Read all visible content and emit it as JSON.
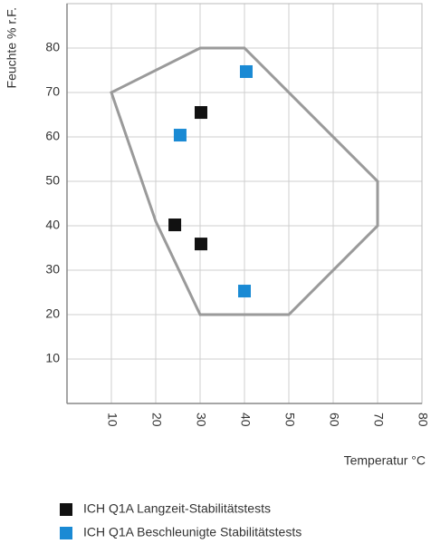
{
  "chart_data": {
    "type": "scatter",
    "x_label": "Temperatur °C",
    "y_label": "Feuchte % r.F.",
    "xlim": [
      0,
      80
    ],
    "ylim": [
      0,
      90
    ],
    "xticks": [
      10,
      20,
      30,
      40,
      50,
      60,
      70,
      80
    ],
    "yticks": [
      10,
      20,
      30,
      40,
      50,
      60,
      70,
      80
    ],
    "grid": true,
    "region": {
      "color": "#9a9a9a",
      "x": [
        10,
        30,
        40,
        70,
        70,
        50,
        30,
        20
      ],
      "y": [
        70,
        80,
        80,
        50,
        40,
        20,
        20,
        41
      ]
    },
    "series": [
      {
        "name": "ICH Q1A Langzeit-Stabilitätstests",
        "color": "#111111",
        "x": [
          30.2,
          24.3,
          30.2
        ],
        "y": [
          65.5,
          40.2,
          35.9
        ]
      },
      {
        "name": "ICH Q1A Beschleunigte Stabilitätstests",
        "color": "#1a8ad4",
        "x": [
          40.4,
          25.5,
          40
        ],
        "y": [
          74.7,
          60.4,
          25.3
        ]
      }
    ]
  }
}
